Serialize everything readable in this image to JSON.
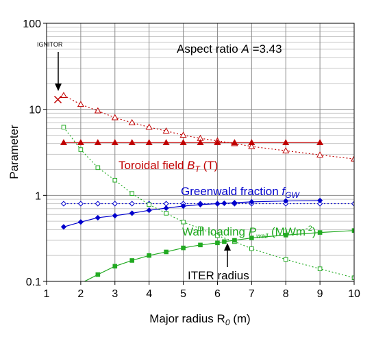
{
  "chart_data": {
    "type": "line",
    "xlabel": "Major radius R",
    "xlabel_sub": "0",
    "xlabel_unit": " (m)",
    "ylabel": "Parameter",
    "xlim": [
      1,
      10
    ],
    "ylim": [
      0.1,
      100
    ],
    "y_scale": "log",
    "grid": true,
    "x_ticks": [
      "1",
      "2",
      "3",
      "4",
      "5",
      "6",
      "7",
      "8",
      "9",
      "10"
    ],
    "y_ticks": [
      {
        "value": 0.1,
        "label": "0.1"
      },
      {
        "value": 1,
        "label": "1"
      },
      {
        "value": 10,
        "label": "10"
      },
      {
        "value": 100,
        "label": "100"
      }
    ],
    "annotations": {
      "aspect_prefix": "Aspect ratio ",
      "aspect_symbol": "A",
      "aspect_value": " =3.43",
      "ignitor_label": "IGNITOR",
      "ignitor_point": {
        "x": 1.33,
        "y": 13
      },
      "iter_label": "ITER radius",
      "iter_point": {
        "x": 6.2,
        "y": 0.3
      },
      "toroidal_label": "Toroidal field ",
      "toroidal_symbol": "B",
      "toroidal_sub": "T",
      "toroidal_unit": " (T)",
      "greenwald_label": "Greenwald fraction ",
      "greenwald_symbol": "f",
      "greenwald_sub": "GW",
      "wall_label": "Wall loading ",
      "wall_symbol": "P",
      "wall_sub": "wall",
      "wall_unit_a": "  (MWm",
      "wall_unit_sup": "-2",
      "wall_unit_b": ")"
    },
    "series": [
      {
        "key": "bt_hollow",
        "color": "#c00000",
        "marker": "triangle-open",
        "dash": true,
        "x": [
          1.5,
          2,
          2.5,
          3,
          3.5,
          4,
          4.5,
          5,
          5.5,
          6,
          6.5,
          7,
          8,
          9,
          10
        ],
        "y": [
          14.5,
          11.4,
          9.6,
          8.0,
          7.0,
          6.2,
          5.6,
          5.0,
          4.6,
          4.3,
          4.0,
          3.7,
          3.3,
          2.95,
          2.65
        ]
      },
      {
        "key": "bt_solid",
        "color": "#c00000",
        "marker": "triangle-filled",
        "dash": false,
        "x": [
          1.5,
          2,
          2.5,
          3,
          3.5,
          4,
          4.5,
          5,
          5.5,
          6,
          6.5,
          7,
          8,
          9
        ],
        "y": [
          4.1,
          4.1,
          4.1,
          4.1,
          4.1,
          4.1,
          4.1,
          4.1,
          4.1,
          4.1,
          4.1,
          4.1,
          4.1,
          4.1
        ]
      },
      {
        "key": "fgw_hollow",
        "color": "#0000cc",
        "marker": "diamond-open",
        "dash": true,
        "x": [
          1.5,
          2,
          2.5,
          3,
          3.5,
          4,
          4.5,
          5,
          5.5,
          6,
          6.5,
          7,
          8,
          9,
          10
        ],
        "y": [
          0.8,
          0.8,
          0.8,
          0.8,
          0.8,
          0.8,
          0.8,
          0.8,
          0.8,
          0.8,
          0.8,
          0.8,
          0.8,
          0.8,
          0.8
        ]
      },
      {
        "key": "fgw_solid",
        "color": "#0000cc",
        "marker": "diamond-filled",
        "dash": false,
        "x": [
          1.5,
          2,
          2.5,
          3,
          3.5,
          4,
          4.5,
          5,
          5.5,
          6,
          6.2,
          6.5,
          7,
          8,
          9
        ],
        "y": [
          0.43,
          0.49,
          0.55,
          0.58,
          0.62,
          0.67,
          0.71,
          0.75,
          0.78,
          0.8,
          0.81,
          0.82,
          0.84,
          0.86,
          0.87
        ]
      },
      {
        "key": "pw_hollow",
        "color": "#22aa22",
        "marker": "square-open",
        "dash": true,
        "x": [
          1.5,
          2,
          2.5,
          3,
          3.5,
          4,
          4.5,
          5,
          5.5,
          6,
          6.5,
          7,
          8,
          9,
          10
        ],
        "y": [
          6.2,
          3.4,
          2.1,
          1.5,
          1.05,
          0.78,
          0.62,
          0.49,
          0.41,
          0.34,
          0.29,
          0.24,
          0.18,
          0.14,
          0.11
        ]
      },
      {
        "key": "pw_solid",
        "color": "#22aa22",
        "marker": "square-filled",
        "dash": false,
        "x": [
          1.5,
          2,
          2.5,
          3,
          3.5,
          4,
          4.5,
          5,
          5.5,
          6,
          6.2,
          6.5,
          7,
          8,
          9,
          10
        ],
        "y": [
          0.07,
          0.095,
          0.12,
          0.15,
          0.175,
          0.2,
          0.22,
          0.245,
          0.265,
          0.28,
          0.29,
          0.3,
          0.32,
          0.345,
          0.37,
          0.39
        ]
      }
    ]
  }
}
